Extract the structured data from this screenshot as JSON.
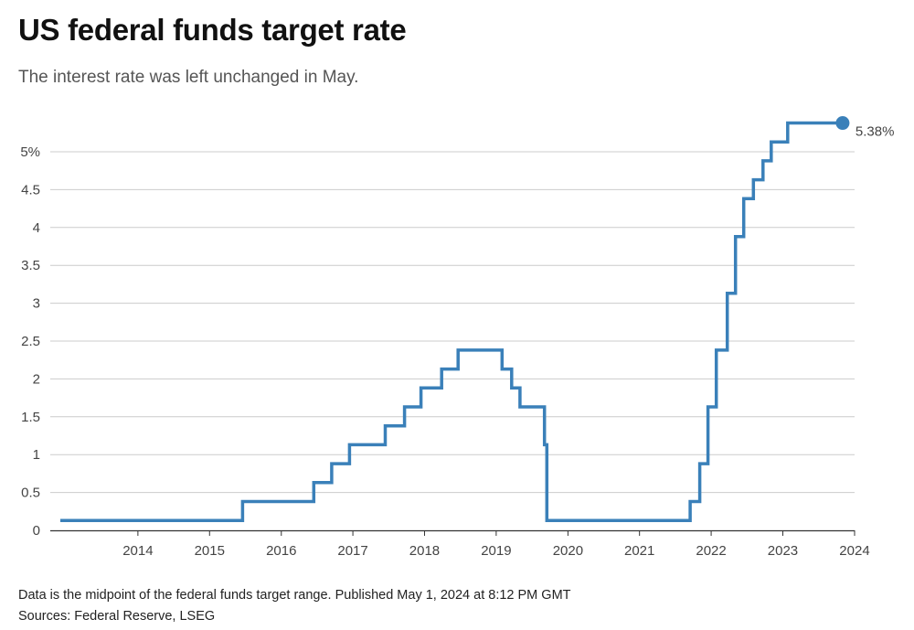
{
  "header": {
    "title": "US federal funds target rate",
    "subtitle": "The interest rate was left unchanged in May."
  },
  "footer": {
    "note": "Data is the midpoint of the federal funds target range. Published May 1, 2024 at 8:12 PM GMT",
    "sources": "Sources: Federal Reserve, LSEG"
  },
  "colors": {
    "line": "#3a80b9",
    "grid": "#cccccc",
    "axis": "#333333"
  },
  "chart_data": {
    "type": "line",
    "step": "after",
    "title": "US federal funds target rate",
    "subtitle": "The interest rate was left unchanged in May.",
    "xlabel": "",
    "ylabel": "",
    "xlim": [
      "2013-06-01",
      "2024-05-01"
    ],
    "ylim": [
      0,
      5.5
    ],
    "x_ticks": [
      "2014",
      "2015",
      "2016",
      "2017",
      "2018",
      "2019",
      "2020",
      "2021",
      "2022",
      "2023",
      "2024"
    ],
    "y_ticks": [
      {
        "value": 0,
        "label": "0"
      },
      {
        "value": 0.5,
        "label": "0.5"
      },
      {
        "value": 1,
        "label": "1"
      },
      {
        "value": 1.5,
        "label": "1.5"
      },
      {
        "value": 2,
        "label": "2"
      },
      {
        "value": 2.5,
        "label": "2.5"
      },
      {
        "value": 3,
        "label": "3"
      },
      {
        "value": 3.5,
        "label": "3.5"
      },
      {
        "value": 4,
        "label": "4"
      },
      {
        "value": 4.5,
        "label": "4.5"
      },
      {
        "value": 5,
        "label": "5%"
      }
    ],
    "grid": true,
    "end_label": "5.38%",
    "series": [
      {
        "points": [
          {
            "date": "2013-06-01",
            "value": 0.13
          },
          {
            "date": "2015-12-16",
            "value": 0.38
          },
          {
            "date": "2016-12-14",
            "value": 0.63
          },
          {
            "date": "2017-03-15",
            "value": 0.88
          },
          {
            "date": "2017-06-14",
            "value": 1.13
          },
          {
            "date": "2017-12-13",
            "value": 1.38
          },
          {
            "date": "2018-03-21",
            "value": 1.63
          },
          {
            "date": "2018-06-13",
            "value": 1.88
          },
          {
            "date": "2018-09-26",
            "value": 2.13
          },
          {
            "date": "2018-12-19",
            "value": 2.38
          },
          {
            "date": "2019-07-31",
            "value": 2.13
          },
          {
            "date": "2019-09-18",
            "value": 1.88
          },
          {
            "date": "2019-10-30",
            "value": 1.63
          },
          {
            "date": "2020-03-03",
            "value": 1.13
          },
          {
            "date": "2020-03-15",
            "value": 0.13
          },
          {
            "date": "2022-03-16",
            "value": 0.38
          },
          {
            "date": "2022-05-04",
            "value": 0.88
          },
          {
            "date": "2022-06-15",
            "value": 1.63
          },
          {
            "date": "2022-07-27",
            "value": 2.38
          },
          {
            "date": "2022-09-21",
            "value": 3.13
          },
          {
            "date": "2022-11-02",
            "value": 3.88
          },
          {
            "date": "2022-12-14",
            "value": 4.38
          },
          {
            "date": "2023-02-01",
            "value": 4.63
          },
          {
            "date": "2023-03-22",
            "value": 4.88
          },
          {
            "date": "2023-05-03",
            "value": 5.13
          },
          {
            "date": "2023-07-26",
            "value": 5.38
          },
          {
            "date": "2024-05-01",
            "value": 5.38
          }
        ]
      }
    ]
  }
}
